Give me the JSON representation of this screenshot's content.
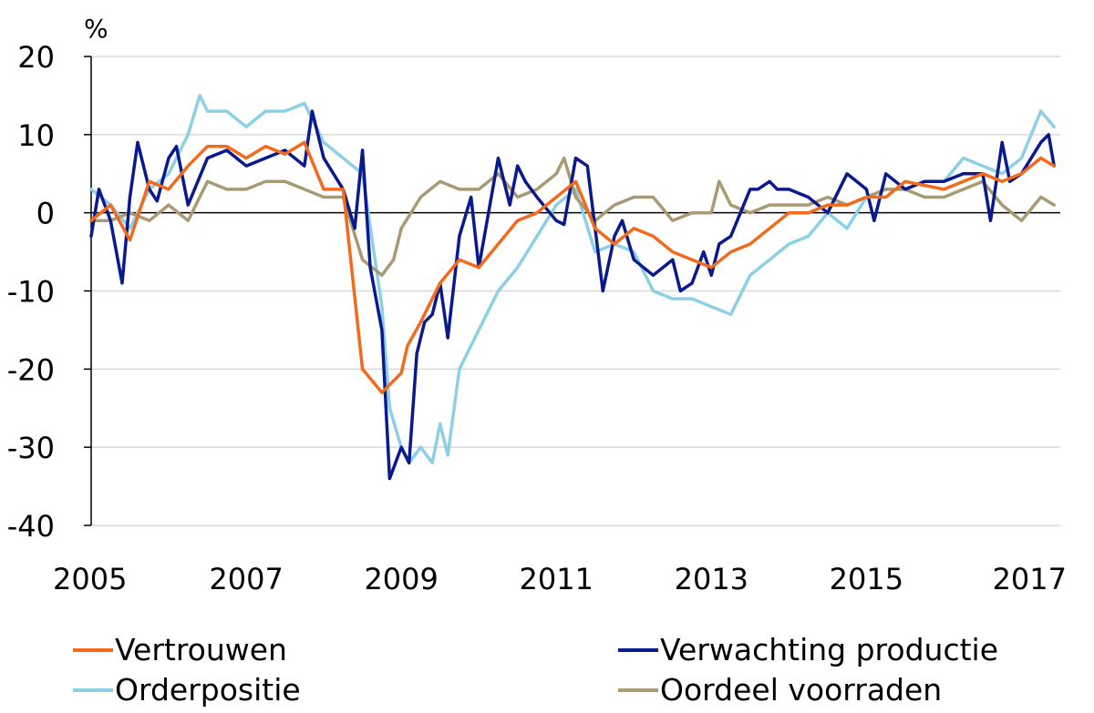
{
  "chart_data": {
    "type": "line",
    "title": "",
    "xlabel": "",
    "ylabel": "%",
    "ylim": [
      -40,
      20
    ],
    "yticks": [
      20,
      10,
      0,
      -10,
      -20,
      -30,
      -40
    ],
    "xlim": [
      2005,
      2017.5
    ],
    "xticks": [
      "2005",
      "2007",
      "2009",
      "2011",
      "2013",
      "2015",
      "2017"
    ],
    "grid": "horizontal",
    "legend_position": "bottom",
    "series": [
      {
        "name": "Vertrouwen",
        "color": "#F26B1D",
        "x": [
          2005.0,
          2005.25,
          2005.5,
          2005.75,
          2006.0,
          2006.25,
          2006.5,
          2006.75,
          2007.0,
          2007.25,
          2007.5,
          2007.75,
          2008.0,
          2008.25,
          2008.5,
          2008.75,
          2009.0,
          2009.08,
          2009.25,
          2009.5,
          2009.75,
          2010.0,
          2010.25,
          2010.5,
          2010.75,
          2011.0,
          2011.25,
          2011.5,
          2011.75,
          2012.0,
          2012.25,
          2012.5,
          2012.75,
          2013.0,
          2013.25,
          2013.5,
          2013.75,
          2014.0,
          2014.25,
          2014.5,
          2014.75,
          2015.0,
          2015.25,
          2015.5,
          2015.75,
          2016.0,
          2016.25,
          2016.5,
          2016.75,
          2017.0,
          2017.25,
          2017.42
        ],
        "values": [
          -1,
          1,
          -3.5,
          4,
          3,
          6,
          8.5,
          8.5,
          7,
          8.5,
          7.5,
          9,
          3,
          3,
          -20,
          -23,
          -20.5,
          -17,
          -14,
          -9,
          -6,
          -7,
          -4,
          -1,
          0,
          2,
          4,
          -2,
          -4,
          -2,
          -3,
          -5,
          -6,
          -7,
          -5,
          -4,
          -2,
          0,
          0,
          1,
          1,
          2,
          2,
          4,
          3.5,
          3,
          4,
          5,
          4,
          5,
          7,
          6
        ]
      },
      {
        "name": "Verwachting productie",
        "color": "#0A1A8C",
        "x": [
          2005.0,
          2005.1,
          2005.25,
          2005.4,
          2005.5,
          2005.6,
          2005.75,
          2005.85,
          2006.0,
          2006.1,
          2006.25,
          2006.5,
          2006.75,
          2007.0,
          2007.25,
          2007.5,
          2007.75,
          2007.85,
          2008.0,
          2008.25,
          2008.4,
          2008.5,
          2008.6,
          2008.75,
          2008.85,
          2009.0,
          2009.1,
          2009.2,
          2009.3,
          2009.4,
          2009.5,
          2009.6,
          2009.75,
          2009.9,
          2010.0,
          2010.25,
          2010.4,
          2010.5,
          2010.6,
          2010.75,
          2011.0,
          2011.1,
          2011.25,
          2011.4,
          2011.5,
          2011.6,
          2011.75,
          2011.85,
          2012.0,
          2012.25,
          2012.5,
          2012.6,
          2012.75,
          2012.9,
          2013.0,
          2013.1,
          2013.25,
          2013.5,
          2013.6,
          2013.75,
          2013.85,
          2014.0,
          2014.25,
          2014.5,
          2014.75,
          2015.0,
          2015.1,
          2015.25,
          2015.5,
          2015.75,
          2016.0,
          2016.25,
          2016.5,
          2016.6,
          2016.75,
          2016.85,
          2017.0,
          2017.25,
          2017.35,
          2017.42
        ],
        "values": [
          -3,
          3,
          -1,
          -9,
          2,
          9,
          3,
          1.5,
          7,
          8.5,
          1,
          7,
          8,
          6,
          7,
          8,
          6,
          13,
          7,
          3,
          -2,
          8,
          -7,
          -15,
          -34,
          -30,
          -32,
          -18,
          -14,
          -13,
          -9,
          -16,
          -3,
          2,
          -7,
          7,
          1,
          6,
          4,
          2,
          -1,
          -1.5,
          7,
          6,
          -2,
          -10,
          -3,
          -1,
          -6,
          -8,
          -6,
          -10,
          -9,
          -5,
          -8,
          -4,
          -3,
          3,
          3,
          4,
          3,
          3,
          2,
          0,
          5,
          3,
          -1,
          5,
          3,
          4,
          4,
          5,
          5,
          -1,
          9,
          4,
          5,
          9,
          10,
          6
        ]
      },
      {
        "name": "Orderpositie",
        "color": "#8DD0E6",
        "x": [
          2005.0,
          2005.25,
          2005.5,
          2005.75,
          2006.0,
          2006.25,
          2006.4,
          2006.5,
          2006.75,
          2007.0,
          2007.25,
          2007.5,
          2007.75,
          2008.0,
          2008.25,
          2008.5,
          2008.75,
          2008.85,
          2009.0,
          2009.1,
          2009.25,
          2009.4,
          2009.5,
          2009.6,
          2009.75,
          2010.0,
          2010.25,
          2010.5,
          2010.75,
          2011.0,
          2011.25,
          2011.5,
          2011.75,
          2012.0,
          2012.25,
          2012.5,
          2012.75,
          2013.0,
          2013.25,
          2013.5,
          2013.75,
          2014.0,
          2014.25,
          2014.5,
          2014.75,
          2015.0,
          2015.25,
          2015.5,
          2015.75,
          2016.0,
          2016.25,
          2016.5,
          2016.75,
          2017.0,
          2017.25,
          2017.42
        ],
        "values": [
          3,
          1,
          -2,
          3,
          5,
          10,
          15,
          13,
          13,
          11,
          13,
          13,
          14,
          9,
          7,
          5,
          -12,
          -25,
          -30,
          -32,
          -30,
          -32,
          -27,
          -31,
          -20,
          -15,
          -10,
          -7,
          -3,
          1,
          3,
          -5,
          -4,
          -5,
          -10,
          -11,
          -11,
          -12,
          -13,
          -8,
          -6,
          -4,
          -3,
          0,
          -2,
          2,
          3,
          3,
          4,
          4,
          7,
          6,
          5,
          7,
          13,
          11
        ]
      },
      {
        "name": "Oordeel voorraden",
        "color": "#A89B74",
        "x": [
          2005.0,
          2005.25,
          2005.5,
          2005.75,
          2006.0,
          2006.25,
          2006.5,
          2006.75,
          2007.0,
          2007.25,
          2007.5,
          2007.75,
          2008.0,
          2008.25,
          2008.5,
          2008.75,
          2008.9,
          2009.0,
          2009.25,
          2009.5,
          2009.75,
          2010.0,
          2010.25,
          2010.5,
          2010.75,
          2011.0,
          2011.1,
          2011.25,
          2011.5,
          2011.75,
          2012.0,
          2012.25,
          2012.5,
          2012.75,
          2013.0,
          2013.1,
          2013.25,
          2013.5,
          2013.75,
          2014.0,
          2014.25,
          2014.5,
          2014.75,
          2015.0,
          2015.25,
          2015.5,
          2015.75,
          2016.0,
          2016.25,
          2016.5,
          2016.75,
          2017.0,
          2017.25,
          2017.42
        ],
        "values": [
          -1,
          -1,
          0,
          -1,
          1,
          -1,
          4,
          3,
          3,
          4,
          4,
          3,
          2,
          2,
          -6,
          -8,
          -6,
          -2,
          2,
          4,
          3,
          3,
          5,
          2,
          3,
          5,
          7,
          2,
          -1,
          1,
          2,
          2,
          -1,
          0,
          0,
          4,
          1,
          0,
          1,
          1,
          1,
          2,
          1,
          2,
          3,
          3,
          2,
          2,
          3,
          4,
          1,
          -1,
          2,
          1
        ]
      }
    ]
  }
}
